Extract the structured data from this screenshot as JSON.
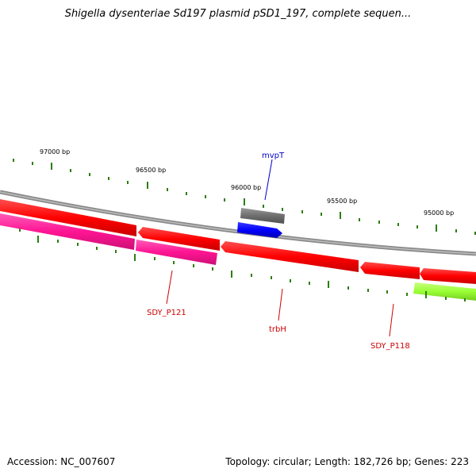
{
  "title": "Shigella dysenteriae Sd197 plasmid pSD1_197, complete sequen...",
  "footer": {
    "accession": "Accession: NC_007607",
    "summary": "Topology: circular; Length: 182,726 bp; Genes: 223"
  },
  "ruler_labels": [
    {
      "text": "97000 bp",
      "bp": 97000
    },
    {
      "text": "96500 bp",
      "bp": 96500
    },
    {
      "text": "96000 bp",
      "bp": 96000
    },
    {
      "text": "95500 bp",
      "bp": 95500
    },
    {
      "text": "95000 bp",
      "bp": 95000
    }
  ],
  "gene_labels": [
    {
      "text": "mvpT",
      "color": "#0000cc"
    },
    {
      "text": "SDY_P121",
      "color": "#cc0000"
    },
    {
      "text": "trbH",
      "color": "#cc0000"
    },
    {
      "text": "SDY_P118",
      "color": "#cc0000"
    }
  ],
  "colors": {
    "backbone": "#8a8a8a",
    "cds": "#ff0000",
    "cds_pink": "#ff1493",
    "mvpT": "#0000ff",
    "gray_feature": "#6e6e6e",
    "green_feature": "#99ff33",
    "tick": "#2e7d10"
  }
}
